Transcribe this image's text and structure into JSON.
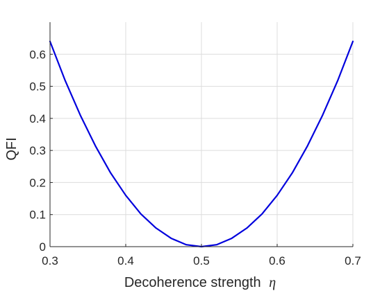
{
  "chart_data": {
    "type": "line",
    "title": "",
    "xlabel": "Decoherence strength",
    "xlabel_symbol": "η",
    "ylabel": "QFI",
    "xlim": [
      0.3,
      0.7
    ],
    "ylim": [
      0,
      0.7
    ],
    "xticks": [
      "0.3",
      "0.4",
      "0.5",
      "0.6",
      "0.7"
    ],
    "yticks": [
      "0",
      "0.1",
      "0.2",
      "0.3",
      "0.4",
      "0.5",
      "0.6"
    ],
    "grid": true,
    "legend": "none",
    "colors": {
      "line": "#0000dd",
      "grid": "#dcdcdc",
      "axis": "#262626"
    },
    "series": [
      {
        "x": [
          0.3,
          0.32,
          0.34,
          0.36,
          0.38,
          0.4,
          0.42,
          0.44,
          0.46,
          0.48,
          0.5,
          0.52,
          0.54,
          0.56,
          0.58,
          0.6,
          0.62,
          0.64,
          0.66,
          0.68,
          0.7
        ],
        "y": [
          0.64,
          0.518,
          0.41,
          0.314,
          0.23,
          0.16,
          0.102,
          0.058,
          0.026,
          0.006,
          0.0,
          0.006,
          0.026,
          0.058,
          0.102,
          0.16,
          0.23,
          0.314,
          0.41,
          0.518,
          0.64
        ]
      }
    ]
  }
}
